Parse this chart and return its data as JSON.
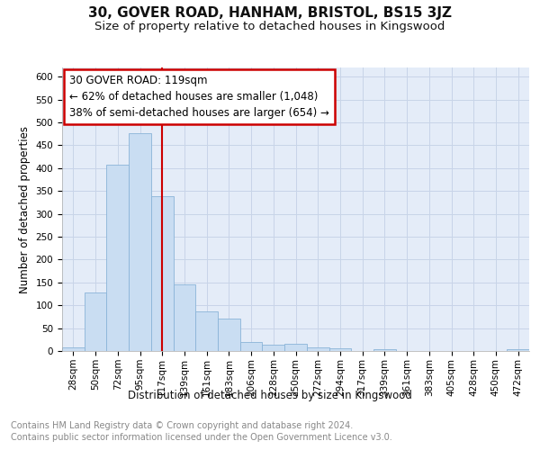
{
  "title": "30, GOVER ROAD, HANHAM, BRISTOL, BS15 3JZ",
  "subtitle": "Size of property relative to detached houses in Kingswood",
  "xlabel": "Distribution of detached houses by size in Kingswood",
  "ylabel": "Number of detached properties",
  "bin_labels": [
    "28sqm",
    "50sqm",
    "72sqm",
    "95sqm",
    "117sqm",
    "139sqm",
    "161sqm",
    "183sqm",
    "206sqm",
    "228sqm",
    "250sqm",
    "272sqm",
    "294sqm",
    "317sqm",
    "339sqm",
    "361sqm",
    "383sqm",
    "405sqm",
    "428sqm",
    "450sqm",
    "472sqm"
  ],
  "bar_values": [
    8,
    128,
    408,
    476,
    338,
    146,
    86,
    70,
    20,
    14,
    16,
    8,
    5,
    0,
    4,
    0,
    0,
    0,
    0,
    0,
    4
  ],
  "bar_color": "#c9ddf2",
  "bar_edge_color": "#8ab4d8",
  "marker_label": "30 GOVER ROAD: 119sqm",
  "annotation_line1": "← 62% of detached houses are smaller (1,048)",
  "annotation_line2": "38% of semi-detached houses are larger (654) →",
  "annotation_box_color": "#ffffff",
  "annotation_box_edge": "#cc0000",
  "vline_color": "#cc0000",
  "ylim": [
    0,
    620
  ],
  "yticks": [
    0,
    50,
    100,
    150,
    200,
    250,
    300,
    350,
    400,
    450,
    500,
    550,
    600
  ],
  "grid_color": "#c8d4e8",
  "bg_color": "#e4ecf8",
  "footer_line1": "Contains HM Land Registry data © Crown copyright and database right 2024.",
  "footer_line2": "Contains public sector information licensed under the Open Government Licence v3.0.",
  "title_fontsize": 11,
  "subtitle_fontsize": 9.5,
  "axis_label_fontsize": 8.5,
  "tick_fontsize": 7.5,
  "footer_fontsize": 7,
  "annotation_fontsize": 8.5
}
